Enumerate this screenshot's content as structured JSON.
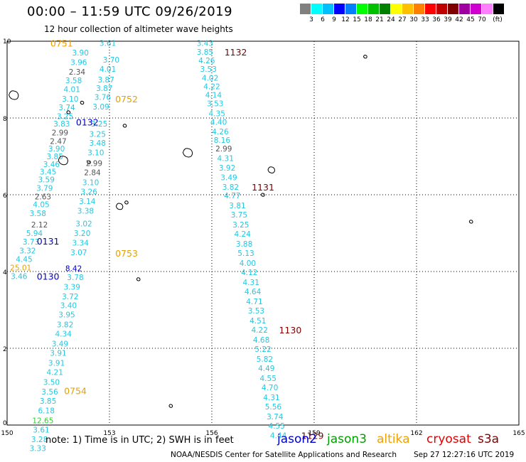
{
  "header": {
    "title": "00:00 – 11:59 UTC 09/26/2019",
    "subtitle": "12 hour collection of altimeter wave heights"
  },
  "colorbar": {
    "colors": [
      "#808080",
      "#00ffff",
      "#00bfff",
      "#0000ff",
      "#0080ff",
      "#00ff00",
      "#00c000",
      "#008000",
      "#ffff00",
      "#ffc000",
      "#ff8000",
      "#ff0000",
      "#c00000",
      "#800000",
      "#a000a0",
      "#d000d0",
      "#ff80ff",
      "#000000"
    ],
    "labels": [
      "3",
      "6",
      "9",
      "12",
      "15",
      "18",
      "21",
      "24",
      "27",
      "30",
      "33",
      "36",
      "39",
      "42",
      "45",
      "70",
      "(ft)"
    ]
  },
  "axes": {
    "x_ticks": [
      "150",
      "153",
      "156",
      "159",
      "162",
      "165"
    ],
    "y_ticks": [
      "0",
      "2",
      "4",
      "6",
      "8",
      "10"
    ],
    "x_range": [
      150,
      165
    ],
    "y_range": [
      0,
      10
    ]
  },
  "colors": {
    "cyan": "#22c8e0",
    "gray": "#555555",
    "orange": "#e8a000",
    "blue": "#0000c8",
    "darkred": "#800000",
    "green": "#33cc33"
  },
  "tracks": [
    {
      "time": "0751",
      "time_color": "orange",
      "time_lon": 151.6,
      "time_lat": 9.95,
      "values": [
        {
          "v": "3.61",
          "lon": 152.95,
          "lat": 9.95,
          "c": "cyan"
        },
        {
          "v": "3.90",
          "lon": 152.15,
          "lat": 9.7,
          "c": "cyan"
        },
        {
          "v": "3.70",
          "lon": 153.05,
          "lat": 9.52,
          "c": "cyan"
        },
        {
          "v": "3.96",
          "lon": 152.1,
          "lat": 9.45,
          "c": "cyan"
        },
        {
          "v": "4.01",
          "lon": 152.95,
          "lat": 9.28,
          "c": "cyan"
        },
        {
          "v": "2.34",
          "lon": 152.05,
          "lat": 9.2,
          "c": "gray"
        },
        {
          "v": "3.87",
          "lon": 152.9,
          "lat": 9.0,
          "c": "cyan"
        },
        {
          "v": "3.58",
          "lon": 151.95,
          "lat": 8.98,
          "c": "cyan"
        },
        {
          "v": "3.87",
          "lon": 152.85,
          "lat": 8.78,
          "c": "cyan"
        },
        {
          "v": "4.01",
          "lon": 151.9,
          "lat": 8.75,
          "c": "cyan"
        },
        {
          "v": "3.76",
          "lon": 152.8,
          "lat": 8.55,
          "c": "cyan"
        },
        {
          "v": "3.10",
          "lon": 151.85,
          "lat": 8.5,
          "c": "cyan"
        },
        {
          "v": "3.74",
          "lon": 151.75,
          "lat": 8.28,
          "c": "cyan"
        },
        {
          "v": "3.09",
          "lon": 152.75,
          "lat": 8.3,
          "c": "cyan"
        },
        {
          "v": "3.25",
          "lon": 151.7,
          "lat": 8.05,
          "c": "cyan"
        },
        {
          "v": "3.83",
          "lon": 151.6,
          "lat": 7.85,
          "c": "cyan"
        },
        {
          "v": "3.25",
          "lon": 152.7,
          "lat": 7.85,
          "c": "cyan"
        },
        {
          "v": "2.99",
          "lon": 151.55,
          "lat": 7.62,
          "c": "gray"
        },
        {
          "v": "3.25",
          "lon": 152.65,
          "lat": 7.58,
          "c": "cyan"
        },
        {
          "v": "2.47",
          "lon": 151.5,
          "lat": 7.4,
          "c": "gray"
        },
        {
          "v": "3.48",
          "lon": 152.65,
          "lat": 7.35,
          "c": "cyan"
        },
        {
          "v": "3.90",
          "lon": 151.45,
          "lat": 7.2,
          "c": "cyan"
        },
        {
          "v": "3.10",
          "lon": 152.6,
          "lat": 7.1,
          "c": "cyan"
        },
        {
          "v": "3.85",
          "lon": 151.4,
          "lat": 7.0,
          "c": "cyan"
        },
        {
          "v": "3.46",
          "lon": 151.3,
          "lat": 6.8,
          "c": "cyan"
        },
        {
          "v": "2.99",
          "lon": 152.55,
          "lat": 6.82,
          "c": "gray"
        },
        {
          "v": "3.45",
          "lon": 151.2,
          "lat": 6.6,
          "c": "cyan"
        },
        {
          "v": "2.84",
          "lon": 152.5,
          "lat": 6.58,
          "c": "gray"
        },
        {
          "v": "3.59",
          "lon": 151.15,
          "lat": 6.4,
          "c": "cyan"
        },
        {
          "v": "3.10",
          "lon": 152.45,
          "lat": 6.32,
          "c": "cyan"
        },
        {
          "v": "3.79",
          "lon": 151.1,
          "lat": 6.18,
          "c": "cyan"
        },
        {
          "v": "3.26",
          "lon": 152.4,
          "lat": 6.08,
          "c": "cyan"
        },
        {
          "v": "2.63",
          "lon": 151.05,
          "lat": 5.95,
          "c": "gray"
        },
        {
          "v": "3.14",
          "lon": 152.35,
          "lat": 5.83,
          "c": "cyan"
        },
        {
          "v": "4.05",
          "lon": 151.0,
          "lat": 5.75,
          "c": "cyan"
        },
        {
          "v": "3.58",
          "lon": 150.9,
          "lat": 5.52,
          "c": "cyan"
        },
        {
          "v": "3.38",
          "lon": 152.3,
          "lat": 5.58,
          "c": "cyan"
        }
      ]
    },
    {
      "time": "0752",
      "time_color": "orange",
      "time_lon": 153.5,
      "time_lat": 8.5,
      "values": []
    },
    {
      "time": "0132",
      "time_color": "blue",
      "time_lon": 152.35,
      "time_lat": 7.9,
      "values": []
    },
    {
      "time": "0131",
      "time_color": "blue",
      "time_lon": 151.2,
      "time_lat": 4.8,
      "values": [
        {
          "v": "2.12",
          "lon": 150.95,
          "lat": 5.22,
          "c": "gray"
        },
        {
          "v": "3.02",
          "lon": 152.25,
          "lat": 5.25,
          "c": "cyan"
        },
        {
          "v": "5.94",
          "lon": 150.8,
          "lat": 5.0,
          "c": "cyan"
        },
        {
          "v": "3.20",
          "lon": 152.2,
          "lat": 5.0,
          "c": "cyan"
        },
        {
          "v": "3.73",
          "lon": 150.7,
          "lat": 4.78,
          "c": "cyan"
        },
        {
          "v": "3.34",
          "lon": 152.15,
          "lat": 4.75,
          "c": "cyan"
        },
        {
          "v": "3.32",
          "lon": 150.6,
          "lat": 4.55,
          "c": "cyan"
        },
        {
          "v": "3.07",
          "lon": 152.1,
          "lat": 4.5,
          "c": "cyan"
        },
        {
          "v": "4.45",
          "lon": 150.5,
          "lat": 4.32,
          "c": "cyan"
        },
        {
          "v": "25.01",
          "lon": 150.4,
          "lat": 4.1,
          "c": "orange"
        },
        {
          "v": "3.46",
          "lon": 150.35,
          "lat": 3.88,
          "c": "cyan"
        },
        {
          "v": "3.78",
          "lon": 152.0,
          "lat": 3.85,
          "c": "cyan"
        }
      ]
    },
    {
      "time": "0753",
      "time_color": "orange",
      "time_lon": 153.5,
      "time_lat": 4.48,
      "values": []
    },
    {
      "time": "0130",
      "time_color": "blue",
      "time_lon": 151.2,
      "time_lat": 3.88,
      "values": [
        {
          "v": "8.42",
          "lon": 151.95,
          "lat": 4.08,
          "c": "blue"
        },
        {
          "v": "3.39",
          "lon": 151.9,
          "lat": 3.6,
          "c": "cyan"
        },
        {
          "v": "3.72",
          "lon": 151.85,
          "lat": 3.35,
          "c": "cyan"
        },
        {
          "v": "3.40",
          "lon": 151.8,
          "lat": 3.12,
          "c": "cyan"
        },
        {
          "v": "3.95",
          "lon": 151.75,
          "lat": 2.88,
          "c": "cyan"
        },
        {
          "v": "3.82",
          "lon": 151.7,
          "lat": 2.62,
          "c": "cyan"
        },
        {
          "v": "4.34",
          "lon": 151.65,
          "lat": 2.38,
          "c": "cyan"
        },
        {
          "v": "3.49",
          "lon": 151.55,
          "lat": 2.12,
          "c": "cyan"
        },
        {
          "v": "3.91",
          "lon": 151.5,
          "lat": 1.88,
          "c": "cyan"
        },
        {
          "v": "3.91",
          "lon": 151.45,
          "lat": 1.62,
          "c": "cyan"
        },
        {
          "v": "4.21",
          "lon": 151.4,
          "lat": 1.38,
          "c": "cyan"
        },
        {
          "v": "3.50",
          "lon": 151.3,
          "lat": 1.12,
          "c": "cyan"
        },
        {
          "v": "3.56",
          "lon": 151.25,
          "lat": 0.87,
          "c": "cyan"
        },
        {
          "v": "3.85",
          "lon": 151.2,
          "lat": 0.63,
          "c": "cyan"
        },
        {
          "v": "6.18",
          "lon": 151.15,
          "lat": 0.38,
          "c": "cyan"
        },
        {
          "v": "12.65",
          "lon": 151.05,
          "lat": 0.12,
          "c": "green"
        },
        {
          "v": "3.61",
          "lon": 151.0,
          "lat": -0.12,
          "c": "cyan"
        },
        {
          "v": "3.28",
          "lon": 150.95,
          "lat": -0.37,
          "c": "cyan"
        },
        {
          "v": "3.33",
          "lon": 150.9,
          "lat": -0.6,
          "c": "cyan"
        }
      ]
    },
    {
      "time": "0754",
      "time_color": "orange",
      "time_lon": 152.0,
      "time_lat": 0.9,
      "values": []
    },
    {
      "time": "1132",
      "time_color": "darkred",
      "time_lon": 156.7,
      "time_lat": 9.72,
      "values": [
        {
          "v": "3.43",
          "lon": 155.8,
          "lat": 9.95,
          "c": "cyan"
        },
        {
          "v": "3.85",
          "lon": 155.8,
          "lat": 9.72,
          "c": "cyan"
        },
        {
          "v": "4.26",
          "lon": 155.85,
          "lat": 9.5,
          "c": "cyan"
        },
        {
          "v": "3.53",
          "lon": 155.9,
          "lat": 9.28,
          "c": "cyan"
        },
        {
          "v": "4.02",
          "lon": 155.95,
          "lat": 9.05,
          "c": "cyan"
        },
        {
          "v": "4.22",
          "lon": 156.0,
          "lat": 8.82,
          "c": "cyan"
        },
        {
          "v": "4.14",
          "lon": 156.05,
          "lat": 8.6,
          "c": "cyan"
        },
        {
          "v": "3.53",
          "lon": 156.1,
          "lat": 8.38,
          "c": "cyan"
        },
        {
          "v": "4.35",
          "lon": 156.15,
          "lat": 8.12,
          "c": "cyan"
        },
        {
          "v": "4.40",
          "lon": 156.2,
          "lat": 7.9,
          "c": "cyan"
        },
        {
          "v": "4.26",
          "lon": 156.25,
          "lat": 7.65,
          "c": "cyan"
        },
        {
          "v": "8.16",
          "lon": 156.3,
          "lat": 7.43,
          "c": "cyan"
        },
        {
          "v": "2.99",
          "lon": 156.35,
          "lat": 7.2,
          "c": "gray"
        },
        {
          "v": "4.31",
          "lon": 156.4,
          "lat": 6.95,
          "c": "cyan"
        },
        {
          "v": "3.92",
          "lon": 156.45,
          "lat": 6.7,
          "c": "cyan"
        },
        {
          "v": "3.49",
          "lon": 156.5,
          "lat": 6.45,
          "c": "cyan"
        },
        {
          "v": "3.82",
          "lon": 156.55,
          "lat": 6.2,
          "c": "cyan"
        }
      ]
    },
    {
      "time": "1131",
      "time_color": "darkred",
      "time_lon": 157.5,
      "time_lat": 6.2,
      "values": [
        {
          "v": "4.77",
          "lon": 156.6,
          "lat": 5.98,
          "c": "cyan"
        },
        {
          "v": "3.81",
          "lon": 156.75,
          "lat": 5.72,
          "c": "cyan"
        },
        {
          "v": "3.75",
          "lon": 156.8,
          "lat": 5.48,
          "c": "cyan"
        },
        {
          "v": "3.25",
          "lon": 156.85,
          "lat": 5.22,
          "c": "cyan"
        },
        {
          "v": "4.24",
          "lon": 156.9,
          "lat": 4.98,
          "c": "cyan"
        },
        {
          "v": "3.88",
          "lon": 156.95,
          "lat": 4.72,
          "c": "cyan"
        },
        {
          "v": "5.13",
          "lon": 157.0,
          "lat": 4.48,
          "c": "cyan"
        },
        {
          "v": "4.00",
          "lon": 157.05,
          "lat": 4.22,
          "c": "cyan"
        },
        {
          "v": "4.12",
          "lon": 157.1,
          "lat": 3.98,
          "c": "cyan"
        },
        {
          "v": "4.31",
          "lon": 157.15,
          "lat": 3.72,
          "c": "cyan"
        },
        {
          "v": "4.64",
          "lon": 157.2,
          "lat": 3.48,
          "c": "cyan"
        },
        {
          "v": "4.71",
          "lon": 157.25,
          "lat": 3.22,
          "c": "cyan"
        },
        {
          "v": "3.53",
          "lon": 157.3,
          "lat": 2.98,
          "c": "cyan"
        },
        {
          "v": "4.51",
          "lon": 157.35,
          "lat": 2.72,
          "c": "cyan"
        },
        {
          "v": "4.22",
          "lon": 157.4,
          "lat": 2.48,
          "c": "cyan"
        }
      ]
    },
    {
      "time": "1130",
      "time_color": "darkred",
      "time_lon": 158.3,
      "time_lat": 2.48,
      "values": [
        {
          "v": "4.68",
          "lon": 157.45,
          "lat": 2.22,
          "c": "cyan"
        },
        {
          "v": "5.22",
          "lon": 157.5,
          "lat": 1.98,
          "c": "cyan"
        },
        {
          "v": "5.82",
          "lon": 157.55,
          "lat": 1.72,
          "c": "cyan"
        },
        {
          "v": "4.49",
          "lon": 157.6,
          "lat": 1.48,
          "c": "cyan"
        },
        {
          "v": "4.55",
          "lon": 157.65,
          "lat": 1.22,
          "c": "cyan"
        },
        {
          "v": "4.70",
          "lon": 157.7,
          "lat": 0.98,
          "c": "cyan"
        },
        {
          "v": "4.31",
          "lon": 157.75,
          "lat": 0.72,
          "c": "cyan"
        },
        {
          "v": "5.56",
          "lon": 157.8,
          "lat": 0.48,
          "c": "cyan"
        },
        {
          "v": "3.74",
          "lon": 157.85,
          "lat": 0.22,
          "c": "cyan"
        },
        {
          "v": "4.55",
          "lon": 157.9,
          "lat": -0.02,
          "c": "cyan"
        },
        {
          "v": "4.44",
          "lon": 157.95,
          "lat": -0.27,
          "c": "cyan"
        }
      ]
    },
    {
      "time": "1129",
      "time_color": "darkred",
      "time_lon": 158.95,
      "time_lat": -0.27,
      "values": []
    }
  ],
  "islands": [
    {
      "lon": 150.2,
      "lat": 8.6
    },
    {
      "lon": 152.2,
      "lat": 8.4
    },
    {
      "lon": 151.8,
      "lat": 8.15
    },
    {
      "lon": 153.45,
      "lat": 7.8
    },
    {
      "lon": 151.65,
      "lat": 6.9
    },
    {
      "lon": 152.4,
      "lat": 6.85
    },
    {
      "lon": 155.3,
      "lat": 7.1
    },
    {
      "lon": 157.75,
      "lat": 6.65
    },
    {
      "lon": 153.3,
      "lat": 5.7
    },
    {
      "lon": 153.5,
      "lat": 5.8
    },
    {
      "lon": 160.5,
      "lat": 9.6
    },
    {
      "lon": 163.6,
      "lat": 5.3
    },
    {
      "lon": 153.85,
      "lat": 3.8
    },
    {
      "lon": 154.8,
      "lat": 0.5
    },
    {
      "lon": 157.5,
      "lat": 6.0
    }
  ],
  "footer": {
    "note": "note: 1) Time is in UTC; 2) SWH is in feet",
    "legend": [
      {
        "label": "jason2",
        "color": "#0000d0"
      },
      {
        "label": "jason3",
        "color": "#00a000"
      },
      {
        "label": "altika",
        "color": "#f0a000"
      },
      {
        "label": "cryosat",
        "color": "#e00000"
      },
      {
        "label": "s3a",
        "color": "#800000"
      }
    ],
    "credit": "NOAA/NESDIS Center for Satellite Applications and Research",
    "timestamp": "Sep 27 12:27:16 UTC 2019"
  }
}
